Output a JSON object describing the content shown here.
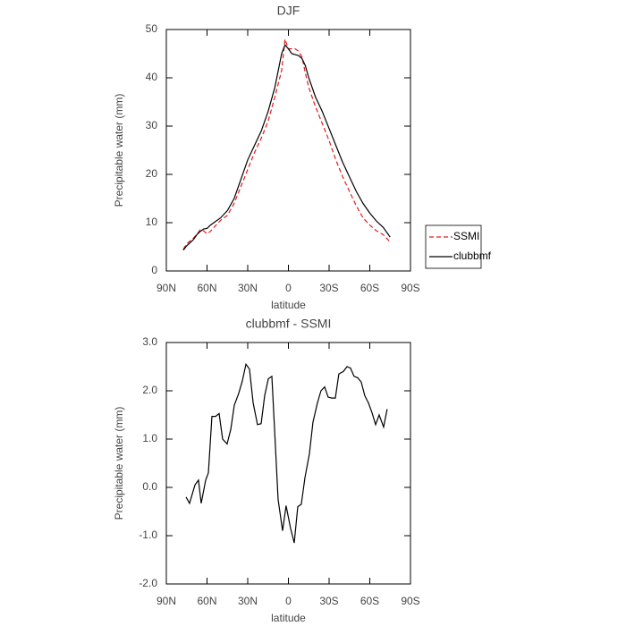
{
  "chart_data": [
    {
      "type": "line",
      "title": "DJF",
      "x_label": "latitude",
      "y_label": "Precipitable water (mm)",
      "x": [
        77.5,
        75,
        70,
        67.5,
        65,
        62.5,
        60,
        57.5,
        55,
        50,
        45,
        40,
        35,
        30,
        25,
        20,
        15,
        10,
        5,
        2.5,
        0,
        -2.5,
        -5,
        -7.5,
        -10,
        -12.5,
        -15,
        -20,
        -25,
        -30,
        -35,
        -40,
        -45,
        -50,
        -55,
        -60,
        -65,
        -70,
        -75
      ],
      "series": [
        {
          "name": "SSMI",
          "color": "#e41a1c",
          "linestyle": "dashed",
          "values": [
            4.5,
            5.6,
            6.8,
            7.6,
            8.5,
            8.3,
            7.7,
            8.2,
            9,
            10.5,
            11.5,
            14,
            17.5,
            21,
            24.5,
            27.5,
            31,
            36,
            41.5,
            48,
            46,
            46,
            46,
            45.5,
            44.3,
            41,
            38,
            34,
            30.5,
            27,
            23,
            19.5,
            16.5,
            13.5,
            11,
            9.5,
            8.3,
            7.5,
            6
          ]
        },
        {
          "name": "clubbmf",
          "color": "#000000",
          "linestyle": "solid",
          "values": [
            4.3,
            5.2,
            6.5,
            7.5,
            8.2,
            8.7,
            8.8,
            9.5,
            10,
            11,
            12.5,
            15,
            19,
            23,
            26,
            29,
            33,
            38,
            45,
            46.8,
            46,
            45,
            44.8,
            44.6,
            44,
            42.5,
            40,
            36,
            33,
            29.5,
            26,
            22.5,
            19.5,
            16.5,
            14,
            12,
            10.3,
            9,
            7
          ]
        }
      ],
      "xlim": [
        90,
        -90
      ],
      "xticks": [
        {
          "value": 90,
          "label": "90N"
        },
        {
          "value": 60,
          "label": "60N"
        },
        {
          "value": 30,
          "label": "30N"
        },
        0,
        {
          "value": -30,
          "label": "30S"
        },
        {
          "value": -60,
          "label": "60S"
        },
        {
          "value": -90,
          "label": "90S"
        }
      ],
      "ylim": [
        0,
        50
      ],
      "yticks": [
        0,
        10,
        20,
        30,
        40,
        50
      ],
      "legend": "right"
    },
    {
      "type": "line",
      "title": "clubbmf - SSMI",
      "x_label": "latitude",
      "y_label": "Precipitable water (mm)",
      "x": [
        75.5,
        72.9,
        68.9,
        66.3,
        64.3,
        61,
        59,
        56.4,
        53.7,
        51.1,
        48.5,
        45.2,
        42.5,
        39.9,
        36.6,
        34,
        31.3,
        28.7,
        26,
        22.8,
        20.1,
        17.5,
        14.8,
        12.2,
        10.2,
        7.6,
        4.3,
        1.7,
        -1.6,
        -4.3,
        -6.9,
        -9.5,
        -12.2,
        -15.5,
        -18.1,
        -21.4,
        -24,
        -26.7,
        -29.3,
        -31.9,
        -34.6,
        -37.2,
        -40.5,
        -43.2,
        -45.8,
        -48.4,
        -51.1,
        -53.7,
        -56.3,
        -59,
        -61.6,
        -64.3,
        -66.9,
        -70.2,
        -72.8
      ],
      "values": [
        -0.2,
        -0.33,
        0.05,
        0.15,
        -0.33,
        0.15,
        0.3,
        1.47,
        1.47,
        1.53,
        1.0,
        0.9,
        1.2,
        1.7,
        1.95,
        2.2,
        2.55,
        2.45,
        1.75,
        1.3,
        1.32,
        1.9,
        2.25,
        2.3,
        1.2,
        -0.25,
        -0.9,
        -0.38,
        -0.85,
        -1.15,
        -0.4,
        -0.35,
        0.2,
        0.7,
        1.35,
        1.75,
        2.0,
        2.08,
        1.87,
        1.85,
        1.85,
        2.35,
        2.4,
        2.5,
        2.47,
        2.3,
        2.27,
        2.18,
        1.9,
        1.75,
        1.55,
        1.3,
        1.5,
        1.25,
        1.62
      ],
      "color": "#000000",
      "xlim": [
        90,
        -90
      ],
      "xticks": [
        {
          "value": 90,
          "label": "90N"
        },
        {
          "value": 60,
          "label": "60N"
        },
        {
          "value": 30,
          "label": "30N"
        },
        0,
        {
          "value": -30,
          "label": "30S"
        },
        {
          "value": -60,
          "label": "60S"
        },
        {
          "value": -90,
          "label": "90S"
        }
      ],
      "ylim": [
        -2,
        3
      ],
      "yticks": [
        {
          "value": -2,
          "label": "-2.0"
        },
        {
          "value": -1,
          "label": "-1.0"
        },
        {
          "value": 0,
          "label": "0.0"
        },
        {
          "value": 1,
          "label": "1.0"
        },
        {
          "value": 2,
          "label": "2.0"
        },
        {
          "value": 3,
          "label": "3.0"
        }
      ]
    }
  ]
}
